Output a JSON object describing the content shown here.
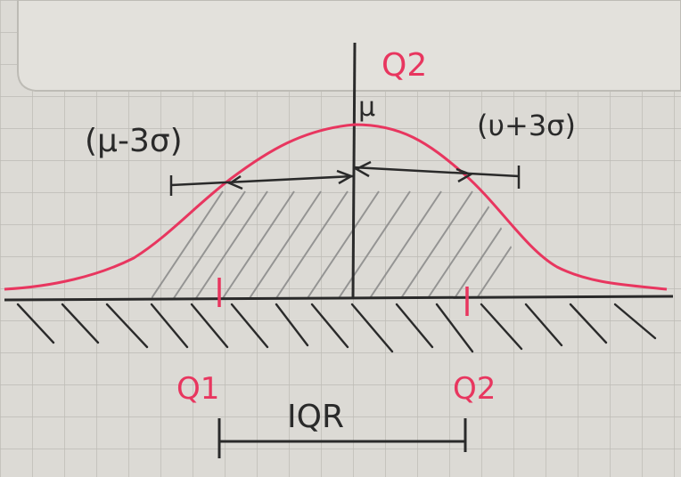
{
  "labels": {
    "q2_top": "Q2",
    "mu": "μ",
    "left_bound": "(μ-3σ)",
    "right_bound": "(υ+3σ)",
    "q1": "Q1",
    "q2_bottom": "Q2",
    "iqr": "IQR"
  },
  "colors": {
    "ink": "#2a2a2a",
    "curve": "#e8365f",
    "paper": "#e2e0db",
    "grid": "#b9b7b1"
  }
}
